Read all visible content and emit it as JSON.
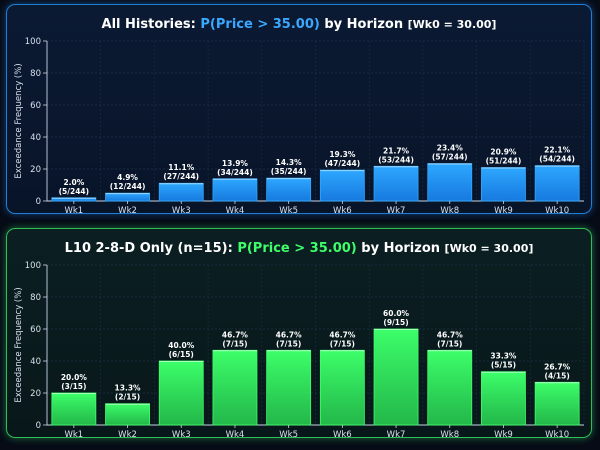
{
  "chart_data": [
    {
      "type": "bar",
      "title_parts": [
        "All Histories:",
        "P(Price > 35.00)",
        "by Horizon",
        "[Wk0 = 30.00]"
      ],
      "ylabel": "Exceedance Frequency (%)",
      "ylim": [
        0,
        100
      ],
      "yticks": [
        "0",
        "20",
        "40",
        "60",
        "80",
        "100"
      ],
      "grid": true,
      "categories": [
        "Wk1",
        "Wk2",
        "Wk3",
        "Wk4",
        "Wk5",
        "Wk6",
        "Wk7",
        "Wk8",
        "Wk9",
        "Wk10"
      ],
      "values": [
        2.0,
        4.9,
        11.1,
        13.9,
        14.3,
        19.3,
        21.7,
        23.4,
        20.9,
        22.1
      ],
      "pct_labels": [
        "2.0%",
        "4.9%",
        "11.1%",
        "13.9%",
        "14.3%",
        "19.3%",
        "21.7%",
        "23.4%",
        "20.9%",
        "22.1%"
      ],
      "count_labels": [
        "(5/244)",
        "(12/244)",
        "(27/244)",
        "(34/244)",
        "(35/244)",
        "(47/244)",
        "(53/244)",
        "(57/244)",
        "(51/244)",
        "(54/244)"
      ],
      "colors": {
        "bar": "#1a8cff",
        "highlight": "#2ea8ff"
      }
    },
    {
      "type": "bar",
      "title_parts": [
        "L10 2-8-D Only (n=15):",
        "P(Price > 35.00)",
        "by Horizon",
        "[Wk0 = 30.00]"
      ],
      "ylabel": "Exceedance Frequency (%)",
      "ylim": [
        0,
        100
      ],
      "yticks": [
        "0",
        "20",
        "40",
        "60",
        "80",
        "100"
      ],
      "grid": true,
      "categories": [
        "Wk1",
        "Wk2",
        "Wk3",
        "Wk4",
        "Wk5",
        "Wk6",
        "Wk7",
        "Wk8",
        "Wk9",
        "Wk10"
      ],
      "values": [
        20.0,
        13.3,
        40.0,
        46.7,
        46.7,
        46.7,
        60.0,
        46.7,
        33.3,
        26.7
      ],
      "pct_labels": [
        "20.0%",
        "13.3%",
        "40.0%",
        "46.7%",
        "46.7%",
        "46.7%",
        "60.0%",
        "46.7%",
        "33.3%",
        "26.7%"
      ],
      "count_labels": [
        "(3/15)",
        "(2/15)",
        "(6/15)",
        "(7/15)",
        "(7/15)",
        "(7/15)",
        "(9/15)",
        "(7/15)",
        "(5/15)",
        "(4/15)"
      ],
      "colors": {
        "bar": "#28d452",
        "highlight": "#3dff6a"
      }
    }
  ]
}
